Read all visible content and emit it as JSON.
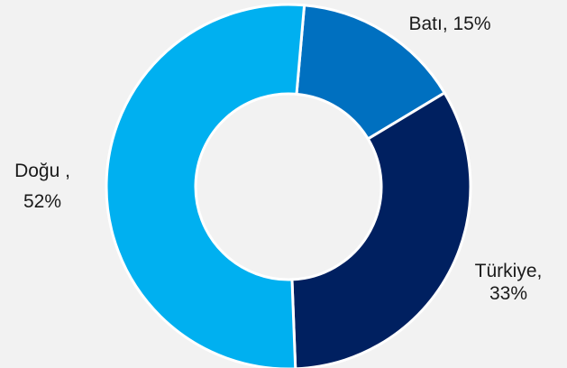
{
  "chart_data": {
    "type": "pie",
    "donut": true,
    "title": "",
    "series": [
      {
        "name": "Batı",
        "value": 15,
        "color": "#0070c0",
        "label_lines": [
          "Batı, 15%"
        ]
      },
      {
        "name": "Türkiye",
        "value": 33,
        "color": "#002060",
        "label_lines": [
          "Türkiye,",
          "33%"
        ]
      },
      {
        "name": "Doğu",
        "value": 52,
        "color": "#00b0f0",
        "label_lines": [
          "Doğu ,",
          "52%"
        ]
      }
    ],
    "slice_border_color": "#ffffff",
    "hole_color": "#f2f2f2"
  }
}
